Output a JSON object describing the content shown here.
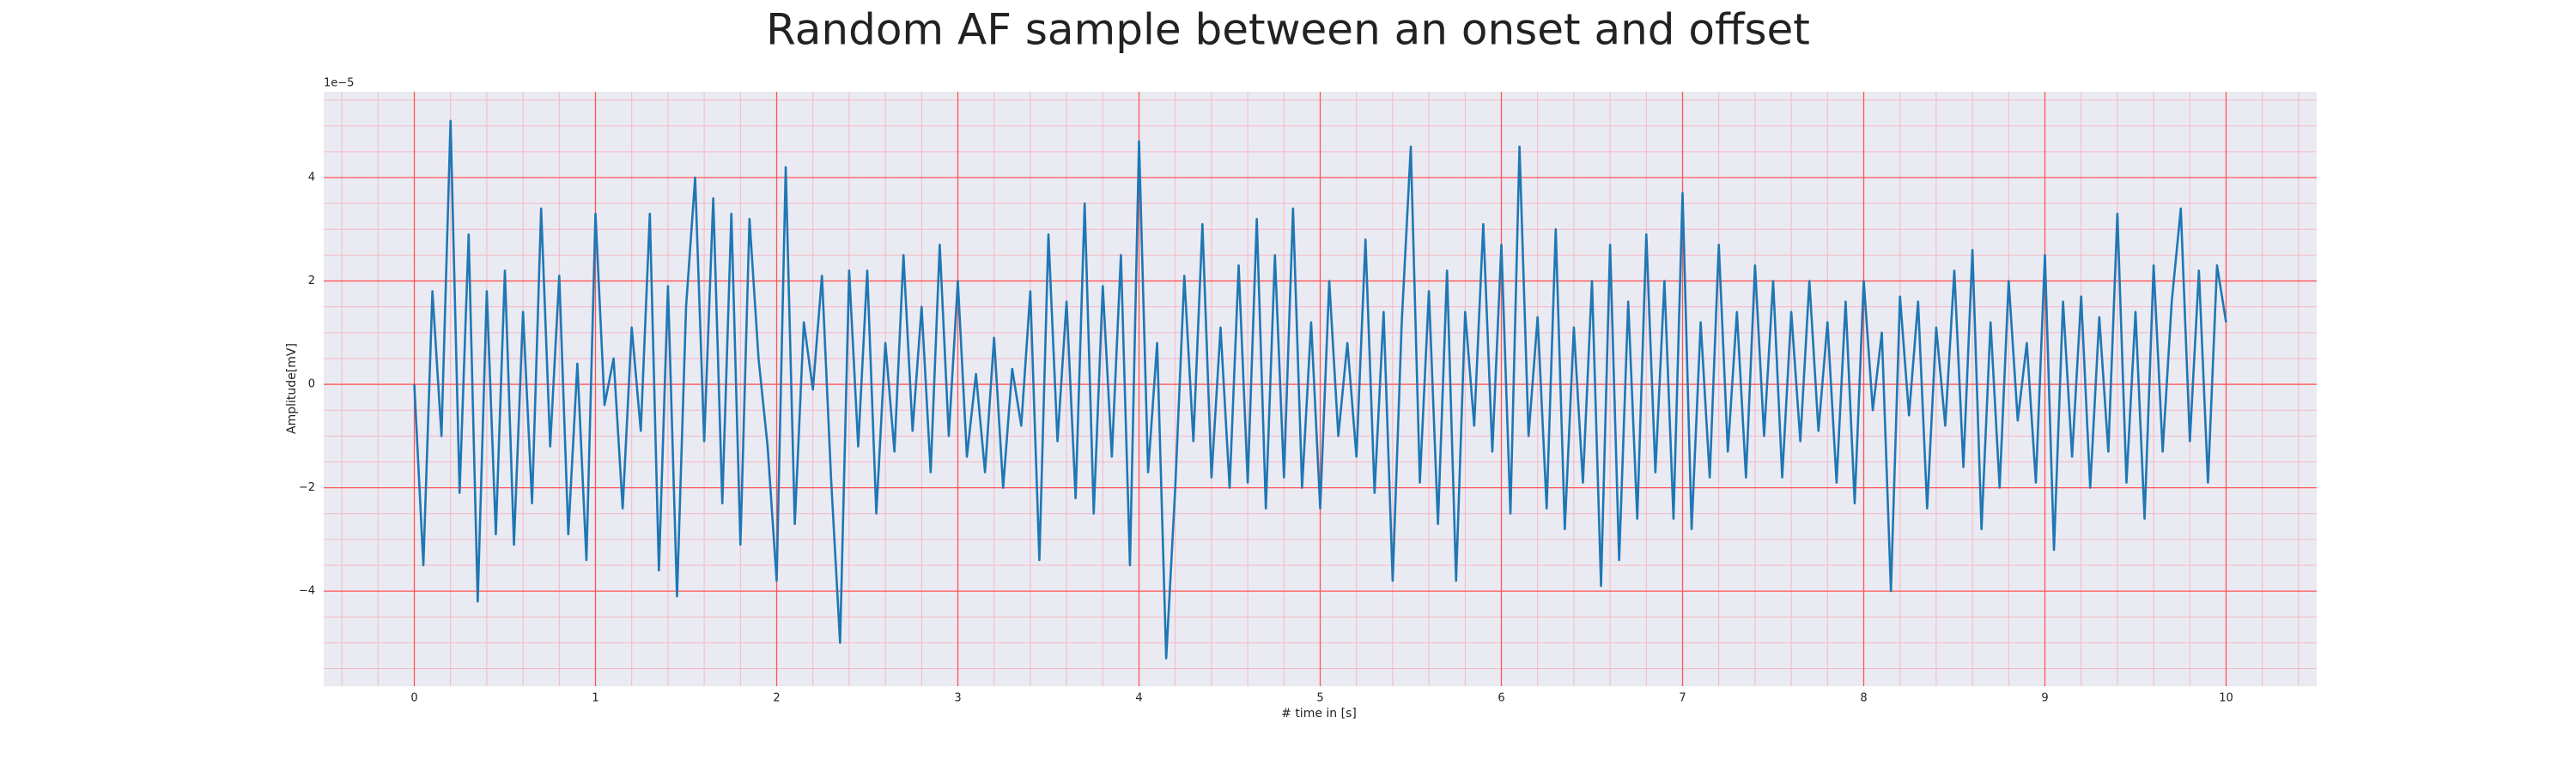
{
  "chart_data": {
    "type": "line",
    "title": "Random AF sample between an onset and offset",
    "xlabel": "# time in [s]",
    "ylabel": "Amplitude[mV]",
    "y_offset_label": "1e−5",
    "xlim": [
      -0.5,
      10.5
    ],
    "ylim": [
      -5.84,
      5.66
    ],
    "xticks": [
      0,
      1,
      2,
      3,
      4,
      5,
      6,
      7,
      8,
      9,
      10
    ],
    "yticks": [
      {
        "value": -4,
        "label": "−4"
      },
      {
        "value": -2,
        "label": "−2"
      },
      0,
      2,
      4
    ],
    "x_minor_ticks": [
      -0.4,
      -0.2,
      0.2,
      0.4,
      0.6,
      0.8,
      1.2,
      1.4,
      1.6,
      1.8,
      2.2,
      2.4,
      2.6,
      2.8,
      3.2,
      3.4,
      3.6,
      3.8,
      4.2,
      4.4,
      4.6,
      4.8,
      5.2,
      5.4,
      5.6,
      5.8,
      6.2,
      6.4,
      6.6,
      6.8,
      7.2,
      7.4,
      7.6,
      7.8,
      8.2,
      8.4,
      8.6,
      8.8,
      9.2,
      9.4,
      9.6,
      9.8,
      10.2,
      10.4
    ],
    "y_minor_ticks": [
      -5.5,
      -5,
      -4.5,
      -3.5,
      -3,
      -2.5,
      -1.5,
      -1,
      -0.5,
      0.5,
      1,
      1.5,
      2.5,
      3,
      3.5,
      4.5,
      5,
      5.5
    ],
    "grid": true,
    "grid_color": "#ff5555",
    "minor_grid_color": "#f4b8c4",
    "background": "#eaeaf2",
    "x": [
      0,
      0.05,
      0.1,
      0.15,
      0.2,
      0.25,
      0.3,
      0.35,
      0.4,
      0.45,
      0.5,
      0.55,
      0.6,
      0.65,
      0.7,
      0.75,
      0.8,
      0.85,
      0.9,
      0.95,
      1,
      1.05,
      1.1,
      1.15,
      1.2,
      1.25,
      1.3,
      1.35,
      1.4,
      1.45,
      1.5,
      1.55,
      1.6,
      1.65,
      1.7,
      1.75,
      1.8,
      1.85,
      1.9,
      1.95,
      2,
      2.05,
      2.1,
      2.15,
      2.2,
      2.25,
      2.3,
      2.35,
      2.4,
      2.45,
      2.5,
      2.55,
      2.6,
      2.65,
      2.7,
      2.75,
      2.8,
      2.85,
      2.9,
      2.95,
      3,
      3.05,
      3.1,
      3.15,
      3.2,
      3.25,
      3.3,
      3.35,
      3.4,
      3.45,
      3.5,
      3.55,
      3.6,
      3.65,
      3.7,
      3.75,
      3.8,
      3.85,
      3.9,
      3.95,
      4,
      4.05,
      4.1,
      4.15,
      4.2,
      4.25,
      4.3,
      4.35,
      4.4,
      4.45,
      4.5,
      4.55,
      4.6,
      4.65,
      4.7,
      4.75,
      4.8,
      4.85,
      4.9,
      4.95,
      5,
      5.05,
      5.1,
      5.15,
      5.2,
      5.25,
      5.3,
      5.35,
      5.4,
      5.45,
      5.5,
      5.55,
      5.6,
      5.65,
      5.7,
      5.75,
      5.8,
      5.85,
      5.9,
      5.95,
      6,
      6.05,
      6.1,
      6.15,
      6.2,
      6.25,
      6.3,
      6.35,
      6.4,
      6.45,
      6.5,
      6.55,
      6.6,
      6.65,
      6.7,
      6.75,
      6.8,
      6.85,
      6.9,
      6.95,
      7,
      7.05,
      7.1,
      7.15,
      7.2,
      7.25,
      7.3,
      7.35,
      7.4,
      7.45,
      7.5,
      7.55,
      7.6,
      7.65,
      7.7,
      7.75,
      7.8,
      7.85,
      7.9,
      7.95,
      8,
      8.05,
      8.1,
      8.15,
      8.2,
      8.25,
      8.3,
      8.35,
      8.4,
      8.45,
      8.5,
      8.55,
      8.6,
      8.65,
      8.7,
      8.75,
      8.8,
      8.85,
      8.9,
      8.95,
      9,
      9.05,
      9.1,
      9.15,
      9.2,
      9.25,
      9.3,
      9.35,
      9.4,
      9.45,
      9.5,
      9.55,
      9.6,
      9.65,
      9.7,
      9.75,
      9.8,
      9.85,
      9.9,
      9.95,
      10
    ],
    "series": [
      {
        "color": "#1f77b4",
        "values": [
          0,
          -3.5,
          1.8,
          -1,
          5.1,
          -2.1,
          2.9,
          -4.2,
          1.8,
          -2.9,
          2.2,
          -3.1,
          1.4,
          -2.3,
          3.4,
          -1.2,
          2.1,
          -2.9,
          0.4,
          -3.4,
          3.3,
          -0.4,
          0.5,
          -2.4,
          1.1,
          -0.9,
          3.3,
          -3.6,
          1.9,
          -4.1,
          1.5,
          4.0,
          -1.1,
          3.6,
          -2.3,
          3.3,
          -3.1,
          3.2,
          0.5,
          -1.2,
          -3.8,
          4.2,
          -2.7,
          1.2,
          -0.1,
          2.1,
          -1.8,
          -5.0,
          2.2,
          -1.2,
          2.2,
          -2.5,
          0.8,
          -1.3,
          2.5,
          -0.9,
          1.5,
          -1.7,
          2.7,
          -1.0,
          2.0,
          -1.4,
          0.2,
          -1.7,
          0.9,
          -2.0,
          0.3,
          -0.8,
          1.8,
          -3.4,
          2.9,
          -1.1,
          1.6,
          -2.2,
          3.5,
          -2.5,
          1.9,
          -1.4,
          2.5,
          -3.5,
          4.7,
          -1.7,
          0.8,
          -5.3,
          -2.0,
          2.1,
          -1.1,
          3.1,
          -1.8,
          1.1,
          -2.0,
          2.3,
          -1.9,
          3.2,
          -2.4,
          2.5,
          -1.8,
          3.4,
          -2.0,
          1.2,
          -2.4,
          2.0,
          -1.0,
          0.8,
          -1.4,
          2.8,
          -2.1,
          1.4,
          -3.8,
          1.2,
          4.6,
          -1.9,
          1.8,
          -2.7,
          2.2,
          -3.8,
          1.4,
          -0.8,
          3.1,
          -1.3,
          2.7,
          -2.5,
          4.6,
          -1.0,
          1.3,
          -2.4,
          3.0,
          -2.8,
          1.1,
          -1.9,
          2.0,
          -3.9,
          2.7,
          -3.4,
          1.6,
          -2.6,
          2.9,
          -1.7,
          2.0,
          -2.6,
          3.7,
          -2.8,
          1.2,
          -1.8,
          2.7,
          -1.3,
          1.4,
          -1.8,
          2.3,
          -1.0,
          2.0,
          -1.8,
          1.4,
          -1.1,
          2.0,
          -0.9,
          1.2,
          -1.9,
          1.6,
          -2.3,
          2.0,
          -0.5,
          1.0,
          -4.0,
          1.7,
          -0.6,
          1.6,
          -2.4,
          1.1,
          -0.8,
          2.2,
          -1.6,
          2.6,
          -2.8,
          1.2,
          -2.0,
          2.0,
          -0.7,
          0.8,
          -1.9,
          2.5,
          -3.2,
          1.6,
          -1.4,
          1.7,
          -2.0,
          1.3,
          -1.3,
          3.3,
          -1.9,
          1.4,
          -2.6,
          2.3,
          -1.3,
          1.6,
          3.4,
          -1.1,
          2.2,
          -1.9,
          2.3,
          1.2
        ]
      }
    ]
  }
}
